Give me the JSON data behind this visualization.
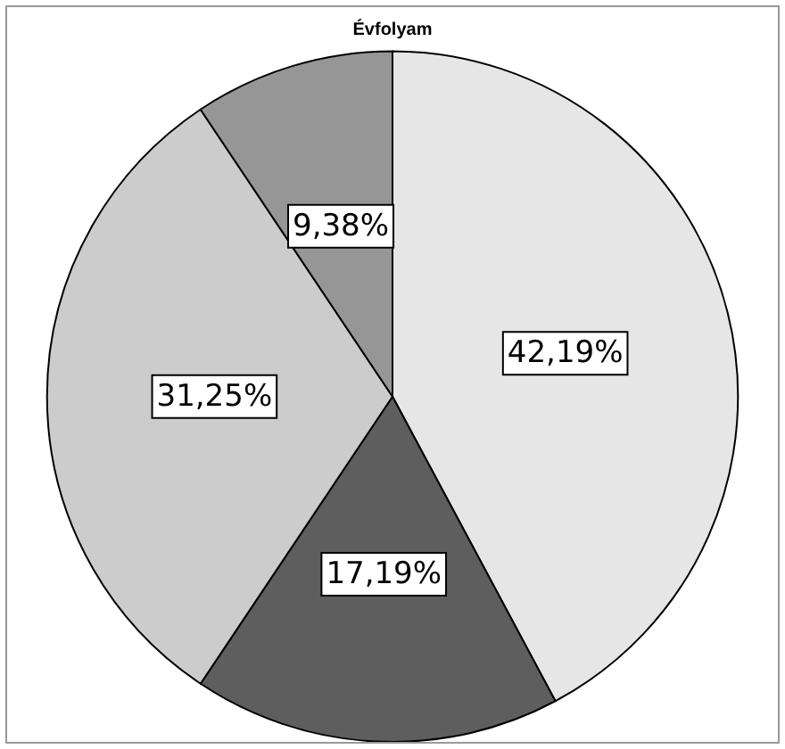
{
  "chart_data": {
    "type": "pie",
    "title": "Évfolyam",
    "categories": [
      null,
      null,
      null,
      null
    ],
    "values": [
      42.19,
      17.19,
      31.25,
      9.38
    ],
    "colors": [
      "#e6e6e6",
      "#5e5e5e",
      "#cccccc",
      "#969696"
    ],
    "value_labels": [
      "42,19%",
      "17,19%",
      "31,25%",
      "9,38%"
    ]
  }
}
